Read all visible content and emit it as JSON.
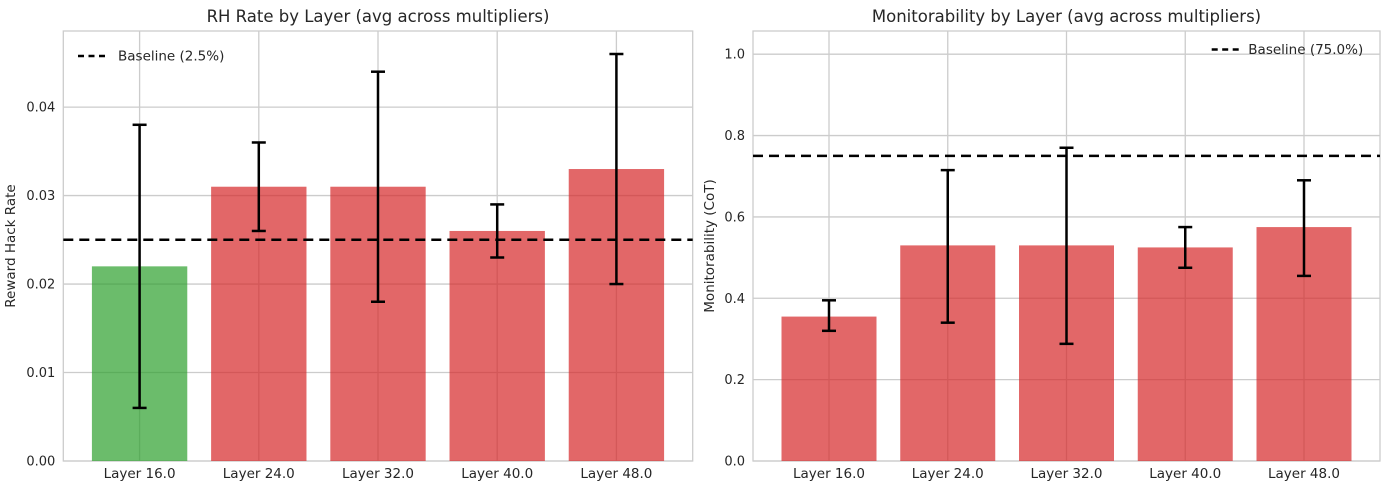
{
  "figure": {
    "background": "#ffffff",
    "text_color": "#262626",
    "grid_color": "#cccccc",
    "error_bar_color": "#000000",
    "baseline_color": "#000000",
    "bar_green": "#2ca02c",
    "bar_red": "#d62728",
    "bar_alpha": 0.7
  },
  "chart_data": [
    {
      "id": "rh-rate",
      "type": "bar",
      "title": "RH Rate by Layer (avg across multipliers)",
      "xlabel": "",
      "ylabel": "Reward Hack Rate",
      "categories": [
        "Layer 16.0",
        "Layer 24.0",
        "Layer 32.0",
        "Layer 40.0",
        "Layer 48.0"
      ],
      "values": [
        0.022,
        0.031,
        0.031,
        0.026,
        0.033
      ],
      "error_low": [
        0.006,
        0.026,
        0.018,
        0.023,
        0.02
      ],
      "error_high": [
        0.038,
        0.036,
        0.044,
        0.029,
        0.046
      ],
      "bar_colors": [
        "#2ca02c",
        "#d62728",
        "#d62728",
        "#d62728",
        "#d62728"
      ],
      "baseline": {
        "value": 0.025,
        "label": "Baseline (2.5%)",
        "style": "dashed"
      },
      "legend_position": "upper-left",
      "ylim": [
        0,
        0.0486
      ],
      "yticks": [
        0,
        0.01,
        0.02,
        0.03,
        0.04
      ],
      "ytick_labels": [
        "0.00",
        "0.01",
        "0.02",
        "0.03",
        "0.04"
      ],
      "grid": true
    },
    {
      "id": "monitorability",
      "type": "bar",
      "title": "Monitorability by Layer (avg across multipliers)",
      "xlabel": "",
      "ylabel": "Monitorability (CoT)",
      "categories": [
        "Layer 16.0",
        "Layer 24.0",
        "Layer 32.0",
        "Layer 40.0",
        "Layer 48.0"
      ],
      "values": [
        0.355,
        0.53,
        0.53,
        0.525,
        0.575
      ],
      "error_low": [
        0.32,
        0.34,
        0.288,
        0.475,
        0.455
      ],
      "error_high": [
        0.395,
        0.715,
        0.77,
        0.575,
        0.69
      ],
      "bar_colors": [
        "#d62728",
        "#d62728",
        "#d62728",
        "#d62728",
        "#d62728"
      ],
      "baseline": {
        "value": 0.75,
        "label": "Baseline (75.0%)",
        "style": "dashed"
      },
      "legend_position": "upper-right",
      "ylim": [
        0,
        1.057
      ],
      "yticks": [
        0,
        0.2,
        0.4,
        0.6,
        0.8,
        1.0
      ],
      "ytick_labels": [
        "0.0",
        "0.2",
        "0.4",
        "0.6",
        "0.8",
        "1.0"
      ],
      "grid": true
    }
  ]
}
